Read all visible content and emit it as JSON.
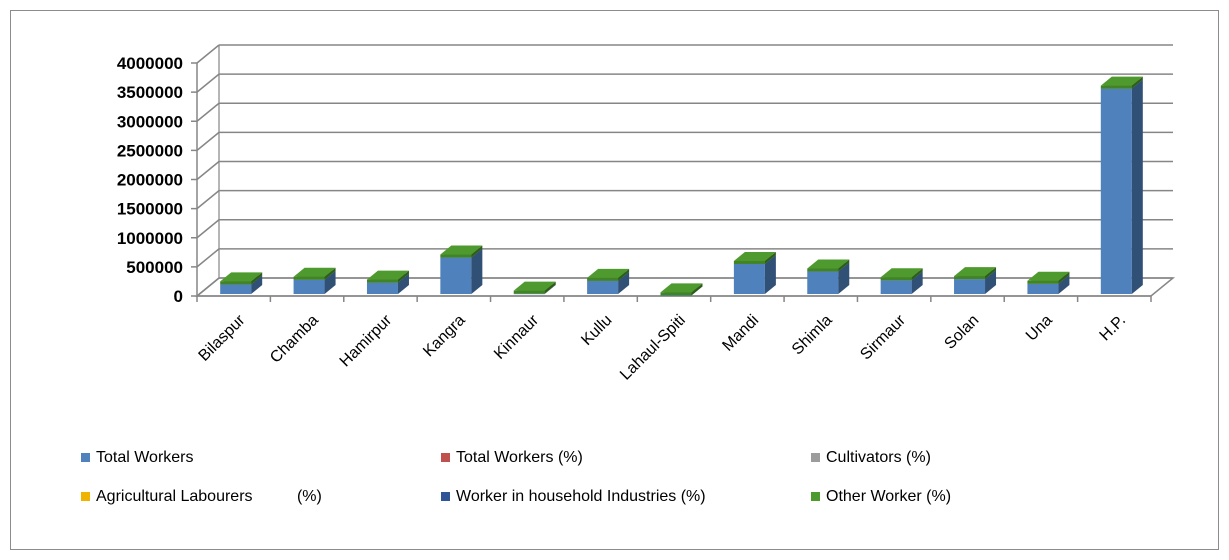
{
  "chart_data": {
    "type": "bar",
    "categories": [
      "Bilaspur",
      "Chamba",
      "Hamirpur",
      "Kangra",
      "Kinnaur",
      "Kullu",
      "Lahaul-Spiti",
      "Mandi",
      "Shimla",
      "Sirmaur",
      "Solan",
      "Una",
      "H.P."
    ],
    "series": [
      {
        "name": "Total Workers",
        "color": "#4f81bd",
        "values": [
          200000,
          280000,
          230000,
          660000,
          40000,
          260000,
          10000,
          550000,
          420000,
          270000,
          290000,
          210000,
          3560000
        ]
      },
      {
        "name": "Total Workers (%)",
        "color": "#c0504d",
        "values": [
          null,
          null,
          null,
          null,
          null,
          null,
          null,
          null,
          null,
          null,
          null,
          null,
          null
        ]
      },
      {
        "name": "Cultivators (%)",
        "color": "#9c9c9c",
        "values": [
          null,
          null,
          null,
          null,
          null,
          null,
          null,
          null,
          null,
          null,
          null,
          null,
          null
        ]
      },
      {
        "name": "Agricultural Labourers          (%)",
        "color": "#f0b400",
        "values": [
          null,
          null,
          null,
          null,
          null,
          null,
          null,
          null,
          null,
          null,
          null,
          null,
          null
        ]
      },
      {
        "name": "Worker in household Industries (%)",
        "color": "#2f5597",
        "values": [
          null,
          null,
          null,
          null,
          null,
          null,
          null,
          null,
          null,
          null,
          null,
          null,
          null
        ]
      },
      {
        "name": "Other Worker (%)",
        "color": "#4e9a2f",
        "values": [
          null,
          null,
          null,
          null,
          null,
          null,
          null,
          null,
          null,
          null,
          null,
          null,
          null
        ]
      }
    ],
    "y_ticks": [
      "0",
      "500000",
      "1000000",
      "1500000",
      "2000000",
      "2500000",
      "3000000",
      "3500000",
      "4000000"
    ],
    "ylim": [
      0,
      4000000
    ],
    "title": "",
    "xlabel": "",
    "ylabel": "",
    "grid": true,
    "legend_position": "bottom",
    "style": "3d-column"
  }
}
